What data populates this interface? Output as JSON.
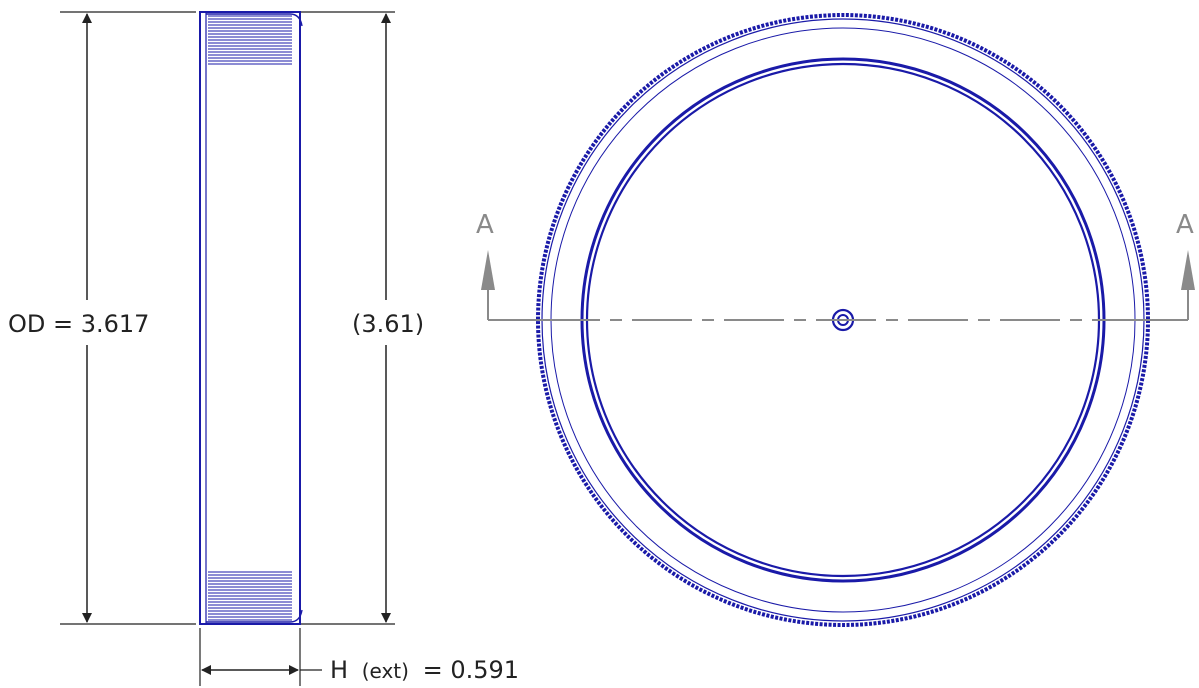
{
  "drawing": {
    "line_color": "#1a1aa8",
    "dim_color": "#222222",
    "section_color": "#8a8a8a",
    "background": "#ffffff"
  },
  "dimensions": {
    "od_label": "OD = 3.617",
    "ref_height_label": "(3.61)",
    "h_label_prefix": "H",
    "h_label_qualifier": "(ext)",
    "h_label_value": "= 0.591"
  },
  "section": {
    "left_letter": "A",
    "right_letter": "A"
  }
}
